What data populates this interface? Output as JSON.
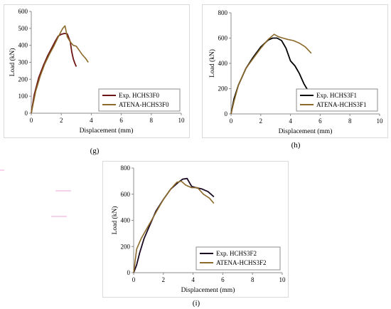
{
  "figure_labels": [
    "(g)",
    "(h)",
    "(i)"
  ],
  "chart_data": [
    {
      "type": "line",
      "panel": "(g)",
      "xlabel": "Displacement (mm)",
      "ylabel": "Load (kN)",
      "xlim": [
        0,
        10
      ],
      "ylim": [
        0,
        600
      ],
      "xticks": [
        0,
        2,
        4,
        6,
        8,
        10
      ],
      "yticks": [
        0,
        100,
        200,
        300,
        400,
        500,
        600
      ],
      "grid": false,
      "legend_position": "bottom-right",
      "series": [
        {
          "name": "Exp. HCHS3F0",
          "color": "#6e1414",
          "x": [
            0,
            0.2,
            0.5,
            0.8,
            1.1,
            1.4,
            1.6,
            1.8,
            2.0,
            2.2,
            2.4,
            2.6,
            2.7,
            2.8,
            2.9,
            3.0
          ],
          "y": [
            0,
            110,
            210,
            280,
            340,
            390,
            425,
            455,
            465,
            470,
            468,
            420,
            360,
            320,
            295,
            275
          ]
        },
        {
          "name": "ATENA-HCHS3F0",
          "color": "#8b6a2b",
          "x": [
            0,
            0.3,
            0.6,
            0.9,
            1.2,
            1.5,
            1.8,
            2.1,
            2.25,
            2.4,
            2.6,
            2.8,
            3.0,
            3.2,
            3.4,
            3.6,
            3.8
          ],
          "y": [
            0,
            130,
            220,
            290,
            345,
            395,
            450,
            500,
            515,
            450,
            420,
            400,
            395,
            370,
            345,
            325,
            300
          ]
        }
      ]
    },
    {
      "type": "line",
      "panel": "(h)",
      "xlabel": "Displacement (mm)",
      "ylabel": "Load (kN)",
      "xlim": [
        0,
        10
      ],
      "ylim": [
        0,
        800
      ],
      "xticks": [
        0,
        2,
        4,
        6,
        8,
        10
      ],
      "yticks": [
        0,
        200,
        400,
        600,
        800
      ],
      "grid": false,
      "legend_position": "bottom-right",
      "series": [
        {
          "name": "Exp. HCHS3F1",
          "color": "#000000",
          "x": [
            0,
            0.2,
            0.5,
            1.0,
            1.5,
            2.0,
            2.5,
            2.8,
            3.1,
            3.4,
            3.7,
            4.0,
            4.3,
            4.6,
            4.9,
            5.1,
            5.3,
            5.5
          ],
          "y": [
            0,
            120,
            230,
            360,
            450,
            530,
            585,
            600,
            600,
            580,
            520,
            420,
            380,
            320,
            240,
            200,
            180,
            120
          ]
        },
        {
          "name": "ATENA-HCHS3F1",
          "color": "#8b6a2b",
          "x": [
            0,
            0.2,
            0.5,
            1.0,
            1.5,
            2.0,
            2.5,
            2.9,
            3.2,
            3.5,
            3.8,
            4.2,
            4.6,
            5.0,
            5.4
          ],
          "y": [
            0,
            100,
            230,
            360,
            440,
            520,
            590,
            630,
            610,
            600,
            590,
            580,
            560,
            530,
            480
          ]
        }
      ]
    },
    {
      "type": "line",
      "panel": "(i)",
      "xlabel": "Displacement (mm)",
      "ylabel": "Load (kN)",
      "xlim": [
        0,
        10
      ],
      "ylim": [
        0,
        800
      ],
      "xticks": [
        0,
        2,
        4,
        6,
        8,
        10
      ],
      "yticks": [
        0,
        200,
        400,
        600,
        800
      ],
      "grid": false,
      "legend_position": "bottom-right",
      "series": [
        {
          "name": "Exp. HCHS3F2",
          "color": "#1a0a24",
          "x": [
            0,
            0.2,
            0.4,
            0.7,
            1.0,
            1.5,
            2.0,
            2.5,
            3.0,
            3.3,
            3.6,
            3.9,
            4.2,
            4.6,
            5.0,
            5.4
          ],
          "y": [
            0,
            60,
            150,
            260,
            340,
            470,
            560,
            640,
            690,
            715,
            720,
            660,
            650,
            640,
            620,
            580
          ]
        },
        {
          "name": "ATENA-HCHS3F2",
          "color": "#8b6a2b",
          "x": [
            0,
            0.2,
            0.5,
            0.8,
            1.1,
            1.5,
            2.0,
            2.5,
            2.9,
            3.2,
            3.5,
            3.9,
            4.3,
            4.7,
            5.1,
            5.4
          ],
          "y": [
            0,
            180,
            260,
            320,
            380,
            460,
            560,
            640,
            690,
            700,
            670,
            650,
            650,
            600,
            570,
            530
          ]
        }
      ]
    }
  ]
}
